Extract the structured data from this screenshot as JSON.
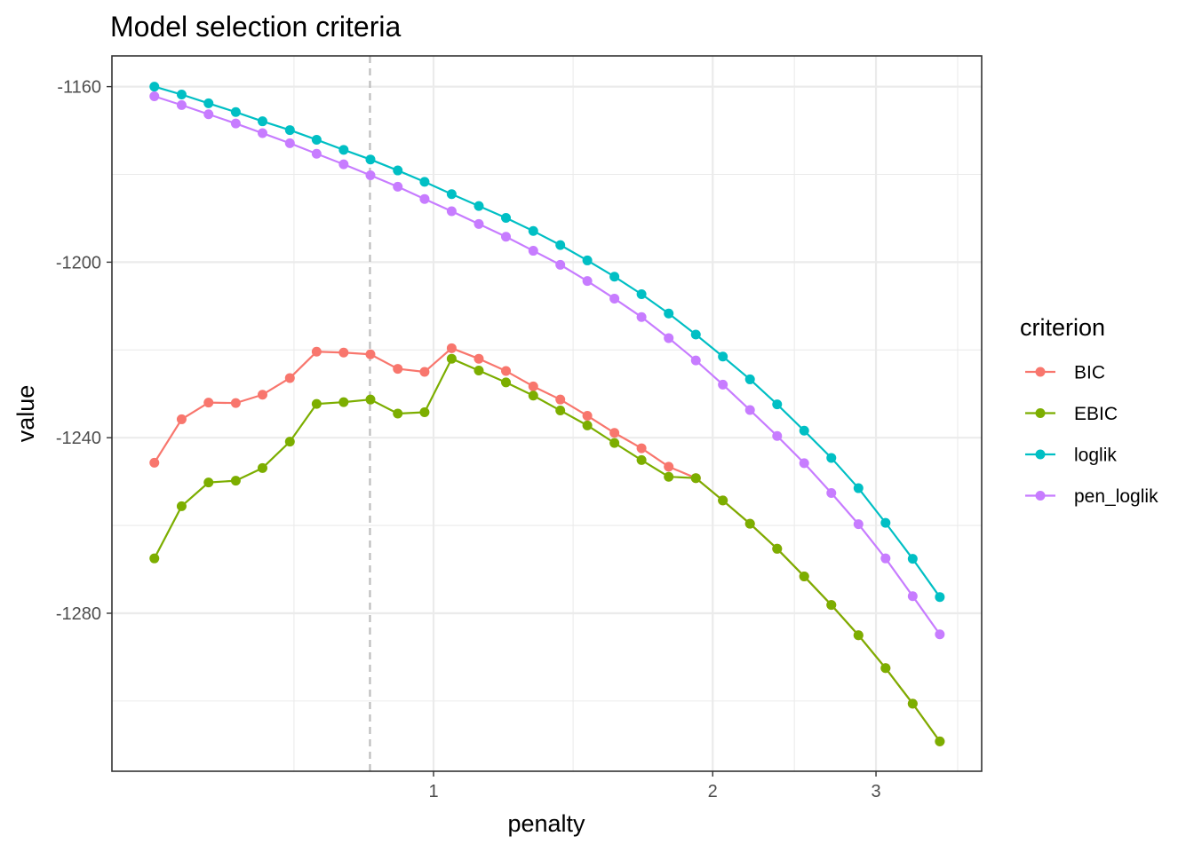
{
  "chart_data": {
    "type": "line",
    "title": "Model selection criteria",
    "xlabel": "penalty",
    "ylabel": "value",
    "x_scale": "log",
    "x_ticks": [
      1,
      2,
      3
    ],
    "x_tick_labels": [
      "1",
      "2",
      "3"
    ],
    "y_ticks": [
      -1160,
      -1200,
      -1240,
      -1280
    ],
    "y_tick_labels": [
      "-1160",
      "-1200",
      "-1240",
      "-1280"
    ],
    "xlim": [
      0.45,
      3.9
    ],
    "ylim": [
      -1316,
      -1153
    ],
    "grid": true,
    "reference_line": {
      "x": 0.854,
      "style": "dashed",
      "color": "#bdbdbd"
    },
    "legend": {
      "title": "criterion",
      "position": "right"
    },
    "x": [
      0.5,
      0.535,
      0.572,
      0.612,
      0.654,
      0.7,
      0.748,
      0.8,
      0.855,
      0.915,
      0.978,
      1.046,
      1.119,
      1.197,
      1.281,
      1.37,
      1.465,
      1.567,
      1.676,
      1.793,
      1.918,
      2.051,
      2.194,
      2.347,
      2.51,
      2.685,
      2.872,
      3.072,
      3.286,
      3.515
    ],
    "series": [
      {
        "name": "BIC",
        "color": "#F8766D",
        "values": [
          -1245.7,
          -1235.8,
          -1232.0,
          -1232.1,
          -1230.2,
          -1226.4,
          -1220.4,
          -1220.6,
          -1221.0,
          -1224.3,
          -1225.0,
          -1219.6,
          -1222.0,
          -1224.8,
          -1228.3,
          -1231.3,
          -1235.0,
          -1238.9,
          -1242.4,
          -1246.6,
          -1249.2,
          -1254.3,
          -1259.6,
          -1265.3,
          -1271.6,
          -1278.1,
          -1285.0,
          -1292.5,
          -1300.6,
          -1309.2
        ]
      },
      {
        "name": "EBIC",
        "color": "#7CAE00",
        "values": [
          -1267.5,
          -1255.6,
          -1250.2,
          -1249.8,
          -1246.9,
          -1240.9,
          -1232.3,
          -1231.9,
          -1231.3,
          -1234.5,
          -1234.2,
          -1222.0,
          -1224.7,
          -1227.4,
          -1230.4,
          -1233.8,
          -1237.2,
          -1241.2,
          -1245.1,
          -1248.9,
          -1249.2,
          -1254.3,
          -1259.6,
          -1265.3,
          -1271.6,
          -1278.1,
          -1285.0,
          -1292.5,
          -1300.6,
          -1309.2
        ]
      },
      {
        "name": "loglik",
        "color": "#00BFC4",
        "values": [
          -1160.0,
          -1161.8,
          -1163.8,
          -1165.8,
          -1167.9,
          -1169.9,
          -1172.1,
          -1174.4,
          -1176.6,
          -1179.1,
          -1181.7,
          -1184.5,
          -1187.2,
          -1189.9,
          -1192.9,
          -1196.1,
          -1199.6,
          -1203.3,
          -1207.3,
          -1211.7,
          -1216.5,
          -1221.5,
          -1226.7,
          -1232.4,
          -1238.4,
          -1244.6,
          -1251.5,
          -1259.4,
          -1267.6,
          -1276.3
        ]
      },
      {
        "name": "pen_loglik",
        "color": "#C77CFF",
        "values": [
          -1162.2,
          -1164.2,
          -1166.3,
          -1168.4,
          -1170.6,
          -1172.9,
          -1175.3,
          -1177.7,
          -1180.2,
          -1182.8,
          -1185.6,
          -1188.4,
          -1191.3,
          -1194.2,
          -1197.4,
          -1200.6,
          -1204.3,
          -1208.3,
          -1212.5,
          -1217.3,
          -1222.4,
          -1227.9,
          -1233.7,
          -1239.6,
          -1245.8,
          -1252.6,
          -1259.7,
          -1267.5,
          -1276.1,
          -1284.8
        ]
      }
    ]
  }
}
